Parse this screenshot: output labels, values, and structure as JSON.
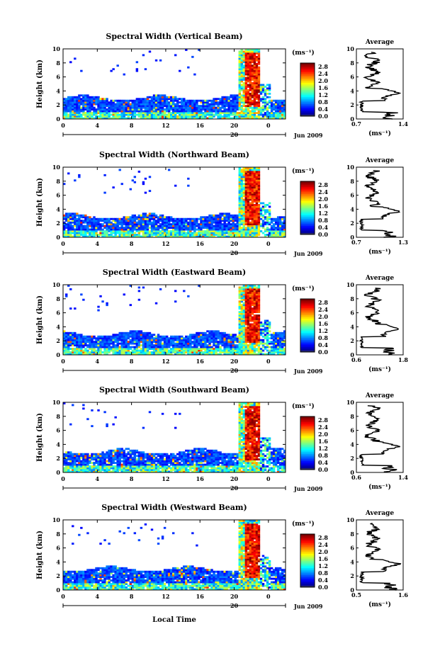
{
  "chart_data": [
    {
      "type": "heatmap",
      "title": "Spectral Width (Vertical Beam)",
      "ylabel": "Height (km)",
      "ylim": [
        0,
        10
      ],
      "x_ticks": [
        "0",
        "4",
        "8",
        "12",
        "16",
        "20",
        "0"
      ],
      "y_ticks": [
        "0",
        "2",
        "4",
        "6",
        "8",
        "10"
      ],
      "date_label": "20",
      "date_right": "Jun 2009",
      "colorbar": {
        "unit": "(ms⁻¹)",
        "ticks": [
          "0.0",
          "0.4",
          "0.8",
          "1.2",
          "1.6",
          "2.0",
          "2.4",
          "2.8"
        ],
        "range": [
          0,
          3
        ]
      },
      "profile": {
        "title": "Average",
        "xlabel": "(ms⁻¹)",
        "x_ticks": [
          "0.7",
          "1.4"
        ],
        "xlim": [
          0.7,
          1.4
        ]
      }
    },
    {
      "type": "heatmap",
      "title": "Spectral Width (Northward Beam)",
      "ylabel": "Height (km)",
      "ylim": [
        0,
        10
      ],
      "x_ticks": [
        "0",
        "4",
        "8",
        "12",
        "16",
        "20",
        "0"
      ],
      "y_ticks": [
        "0",
        "2",
        "4",
        "6",
        "8",
        "10"
      ],
      "date_label": "20",
      "date_right": "Jun 2009",
      "colorbar": {
        "unit": "(ms⁻¹)",
        "ticks": [
          "0.0",
          "0.4",
          "0.8",
          "1.2",
          "1.6",
          "2.0",
          "2.4",
          "2.8"
        ],
        "range": [
          0,
          3
        ]
      },
      "profile": {
        "title": "Average",
        "xlabel": "(ms⁻¹)",
        "x_ticks": [
          "0.7",
          "1.3"
        ],
        "xlim": [
          0.7,
          1.3
        ]
      }
    },
    {
      "type": "heatmap",
      "title": "Spectral Width (Eastward Beam)",
      "ylabel": "Height (km)",
      "ylim": [
        0,
        10
      ],
      "x_ticks": [
        "0",
        "4",
        "8",
        "12",
        "16",
        "20",
        "0"
      ],
      "y_ticks": [
        "0",
        "2",
        "4",
        "6",
        "8",
        "10"
      ],
      "date_label": "20",
      "date_right": "Jun 2009",
      "colorbar": {
        "unit": "(ms⁻¹)",
        "ticks": [
          "0.0",
          "0.4",
          "0.8",
          "1.2",
          "1.6",
          "2.0",
          "2.4",
          "2.8"
        ],
        "range": [
          0,
          3
        ]
      },
      "profile": {
        "title": "Average",
        "xlabel": "(ms⁻¹)",
        "x_ticks": [
          "0.6",
          "1.8"
        ],
        "xlim": [
          0.6,
          1.8
        ]
      }
    },
    {
      "type": "heatmap",
      "title": "Spectral Width (Southward Beam)",
      "ylabel": "Height (km)",
      "ylim": [
        0,
        10
      ],
      "x_ticks": [
        "0",
        "4",
        "8",
        "12",
        "16",
        "20",
        "0"
      ],
      "y_ticks": [
        "0",
        "2",
        "4",
        "6",
        "8",
        "10"
      ],
      "date_label": "20",
      "date_right": "Jun 2009",
      "colorbar": {
        "unit": "(ms⁻¹)",
        "ticks": [
          "0.0",
          "0.4",
          "0.8",
          "1.2",
          "1.6",
          "2.0",
          "2.4",
          "2.8"
        ],
        "range": [
          0,
          3
        ]
      },
      "profile": {
        "title": "Average",
        "xlabel": "(ms⁻¹)",
        "x_ticks": [
          "0.6",
          "1.4"
        ],
        "xlim": [
          0.6,
          1.4
        ]
      }
    },
    {
      "type": "heatmap",
      "title": "Spectral Width (Westward Beam)",
      "ylabel": "Height (km)",
      "ylim": [
        0,
        10
      ],
      "x_ticks": [
        "0",
        "4",
        "8",
        "12",
        "16",
        "20",
        "0"
      ],
      "y_ticks": [
        "0",
        "2",
        "4",
        "6",
        "8",
        "10"
      ],
      "date_label": "20",
      "date_right": "Jun 2009",
      "colorbar": {
        "unit": "(ms⁻¹)",
        "ticks": [
          "0.0",
          "0.4",
          "0.8",
          "1.2",
          "1.6",
          "2.0",
          "2.4",
          "2.8"
        ],
        "range": [
          0,
          3
        ]
      },
      "profile": {
        "title": "Average",
        "xlabel": "(ms⁻¹)",
        "x_ticks": [
          "0.5",
          "1.6"
        ],
        "xlim": [
          0.5,
          1.6
        ]
      }
    }
  ],
  "xlabel": "Local Time"
}
